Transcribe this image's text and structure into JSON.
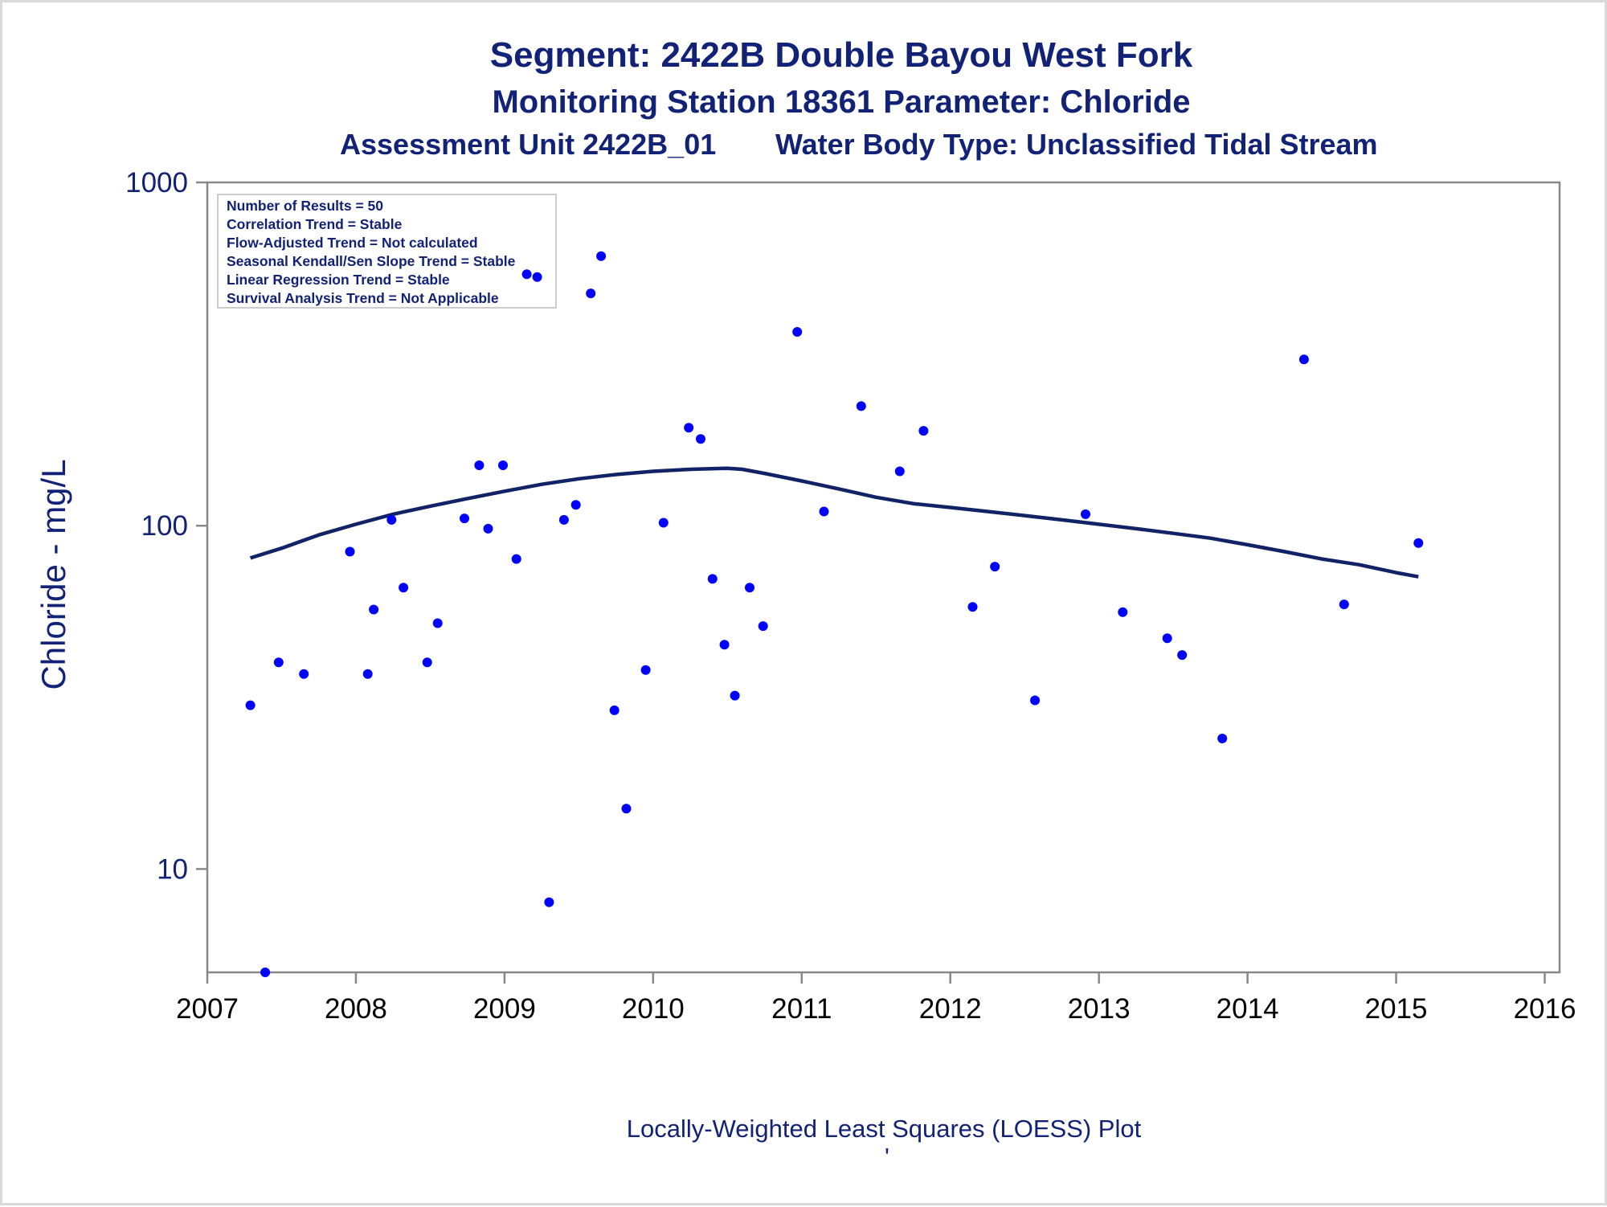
{
  "colors": {
    "text": "#112277",
    "points": "#0000ff",
    "loess_line": "#112266",
    "axis": "#888888"
  },
  "chart_data": {
    "type": "scatter",
    "title": "Segment: 2422B  Double Bayou West Fork",
    "subtitle": "Monitoring Station 18361 Parameter: Chloride",
    "subtitle2_left": "Assessment Unit 2422B_01",
    "subtitle2_right": "Water Body Type: Unclassified Tidal Stream",
    "xlabel": "",
    "ylabel": "Chloride - mg/L",
    "caption": "Locally-Weighted Least Squares (LOESS) Plot",
    "footnote": "'",
    "x_scale": "linear",
    "y_scale": "log",
    "xlim": [
      2007.0,
      2016.1
    ],
    "ylim": [
      5,
      1000
    ],
    "x_ticks": [
      "2007",
      "2008",
      "2009",
      "2010",
      "2011",
      "2012",
      "2013",
      "2014",
      "2015",
      "2016"
    ],
    "y_ticks": [
      "10",
      "100",
      "1000"
    ],
    "grid": false,
    "stats_box": {
      "position": "top-left",
      "lines": [
        "Number of Results = 50",
        "Correlation Trend = Stable",
        "Flow-Adjusted Trend = Not calculated",
        "Seasonal Kendall/Sen Slope Trend = Stable",
        "Linear Regression Trend = Stable",
        "Survival Analysis Trend = Not Applicable"
      ]
    },
    "series": [
      {
        "type": "scatter",
        "x": [
          2007.29,
          2007.39,
          2007.48,
          2007.65,
          2007.96,
          2008.08,
          2008.12,
          2008.24,
          2008.32,
          2008.48,
          2008.55,
          2008.73,
          2008.83,
          2008.89,
          2008.99,
          2009.08,
          2009.15,
          2009.22,
          2009.3,
          2009.4,
          2009.48,
          2009.58,
          2009.65,
          2009.74,
          2009.82,
          2009.95,
          2010.07,
          2010.24,
          2010.32,
          2010.4,
          2010.48,
          2010.55,
          2010.65,
          2010.74,
          2010.97,
          2011.15,
          2011.4,
          2011.66,
          2011.82,
          2012.15,
          2012.3,
          2012.57,
          2012.91,
          2013.16,
          2013.46,
          2013.56,
          2013.83,
          2014.38,
          2014.65,
          2015.15
        ],
        "y": [
          30,
          5,
          40,
          37,
          84,
          37,
          57,
          104,
          66,
          40,
          52,
          105,
          150,
          98,
          150,
          80,
          540,
          530,
          8,
          104,
          115,
          475,
          610,
          29,
          15,
          38,
          102,
          193,
          179,
          70,
          45,
          32,
          66,
          51,
          367,
          110,
          223,
          144,
          189,
          58,
          76,
          31,
          108,
          56,
          47,
          42,
          24,
          305,
          59,
          89
        ]
      },
      {
        "type": "line",
        "name": "LOESS",
        "x": [
          2007.29,
          2007.5,
          2007.75,
          2008.0,
          2008.25,
          2008.5,
          2008.75,
          2009.0,
          2009.25,
          2009.5,
          2009.75,
          2010.0,
          2010.25,
          2010.5,
          2010.6,
          2010.75,
          2011.0,
          2011.25,
          2011.5,
          2011.75,
          2012.0,
          2012.25,
          2012.5,
          2012.75,
          2013.0,
          2013.25,
          2013.5,
          2013.75,
          2014.0,
          2014.25,
          2014.5,
          2014.75,
          2015.0,
          2015.15
        ],
        "y": [
          80.5,
          86,
          94,
          101,
          108,
          114,
          120,
          126,
          132,
          137,
          141,
          144,
          146,
          147,
          146,
          142,
          135,
          128,
          121,
          116,
          113,
          110,
          107,
          104,
          101,
          98,
          95,
          92,
          88,
          84,
          80,
          77,
          73,
          71
        ]
      }
    ]
  }
}
